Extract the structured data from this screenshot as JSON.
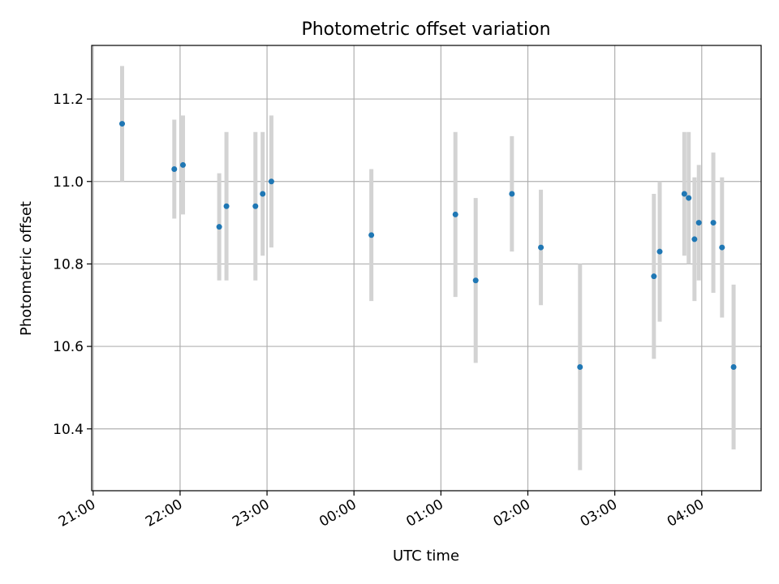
{
  "chart_data": {
    "type": "scatter",
    "title": "Photometric offset variation",
    "xlabel": "UTC time",
    "ylabel": "Photometric offset",
    "x_ticks": [
      "21:00",
      "22:00",
      "23:00",
      "00:00",
      "01:00",
      "02:00",
      "03:00",
      "04:00"
    ],
    "y_ticks": [
      "10.4",
      "10.6",
      "10.8",
      "11.0",
      "11.2"
    ],
    "xlim": [
      "20:59",
      "04:41"
    ],
    "ylim": [
      10.25,
      11.33
    ],
    "grid": true,
    "colors": {
      "points": "#1f77b4",
      "errorbars": "#d3d3d3",
      "grid": "#b0b0b0"
    },
    "series": [
      {
        "points": [
          {
            "x": "21:20",
            "y": 11.14,
            "err": 0.14
          },
          {
            "x": "21:56",
            "y": 11.03,
            "err": 0.12
          },
          {
            "x": "22:02",
            "y": 11.04,
            "err": 0.12
          },
          {
            "x": "22:27",
            "y": 10.89,
            "err": 0.13
          },
          {
            "x": "22:32",
            "y": 10.94,
            "err": 0.18
          },
          {
            "x": "22:52",
            "y": 10.94,
            "err": 0.18
          },
          {
            "x": "22:57",
            "y": 10.97,
            "err": 0.15
          },
          {
            "x": "23:03",
            "y": 11.0,
            "err": 0.16
          },
          {
            "x": "00:12",
            "y": 10.87,
            "err": 0.16
          },
          {
            "x": "01:10",
            "y": 10.92,
            "err": 0.2
          },
          {
            "x": "01:24",
            "y": 10.76,
            "err": 0.2
          },
          {
            "x": "01:49",
            "y": 10.97,
            "err": 0.14
          },
          {
            "x": "02:09",
            "y": 10.84,
            "err": 0.14
          },
          {
            "x": "02:36",
            "y": 10.55,
            "err": 0.25
          },
          {
            "x": "03:27",
            "y": 10.77,
            "err": 0.2
          },
          {
            "x": "03:31",
            "y": 10.83,
            "err": 0.17
          },
          {
            "x": "03:48",
            "y": 10.97,
            "err": 0.15
          },
          {
            "x": "03:51",
            "y": 10.96,
            "err": 0.16
          },
          {
            "x": "03:55",
            "y": 10.86,
            "err": 0.15
          },
          {
            "x": "03:58",
            "y": 10.9,
            "err": 0.14
          },
          {
            "x": "04:08",
            "y": 10.9,
            "err": 0.17
          },
          {
            "x": "04:14",
            "y": 10.84,
            "err": 0.17
          },
          {
            "x": "04:22",
            "y": 10.55,
            "err": 0.2
          }
        ]
      }
    ]
  }
}
